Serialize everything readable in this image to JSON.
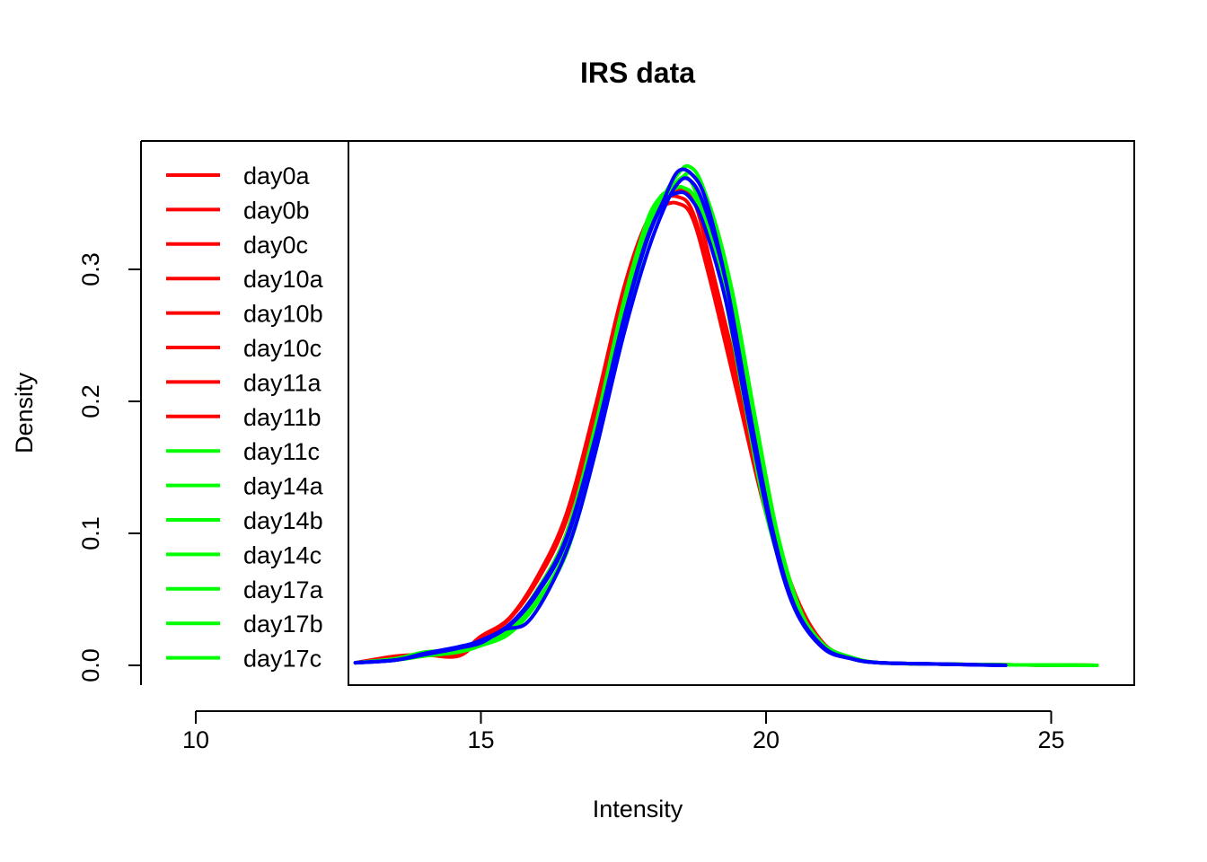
{
  "chart_data": {
    "type": "line",
    "title": "IRS data",
    "xlabel": "Intensity",
    "ylabel": "Density",
    "xlim": [
      12.8,
      26.6
    ],
    "ylim": [
      -0.0147,
      0.398
    ],
    "x_ticks": [
      10,
      15,
      20,
      25
    ],
    "y_ticks": [
      0.0,
      0.1,
      0.2,
      0.3
    ],
    "x_tick_labels": [
      "10",
      "15",
      "20",
      "25"
    ],
    "y_tick_labels": [
      "0.0",
      "0.1",
      "0.2",
      "0.3"
    ],
    "grid": false,
    "legend_position": "top-left",
    "group_colors": {
      "red": "#ff0000",
      "green": "#00ff00",
      "blue": "#0000ff"
    },
    "legend": [
      {
        "label": "day0a",
        "color": "#ff0000"
      },
      {
        "label": "day0b",
        "color": "#ff0000"
      },
      {
        "label": "day0c",
        "color": "#ff0000"
      },
      {
        "label": "day10a",
        "color": "#ff0000"
      },
      {
        "label": "day10b",
        "color": "#ff0000"
      },
      {
        "label": "day10c",
        "color": "#ff0000"
      },
      {
        "label": "day11a",
        "color": "#ff0000"
      },
      {
        "label": "day11b",
        "color": "#ff0000"
      },
      {
        "label": "day11c",
        "color": "#00ff00"
      },
      {
        "label": "day14a",
        "color": "#00ff00"
      },
      {
        "label": "day14b",
        "color": "#00ff00"
      },
      {
        "label": "day14c",
        "color": "#00ff00"
      },
      {
        "label": "day17a",
        "color": "#00ff00"
      },
      {
        "label": "day17b",
        "color": "#00ff00"
      },
      {
        "label": "day17c",
        "color": "#00ff00"
      }
    ],
    "series": [
      {
        "color": "#ff0000",
        "x": [
          12.8,
          13.5,
          14.0,
          14.6,
          15.0,
          15.5,
          16.0,
          16.5,
          17.0,
          17.5,
          17.9,
          18.2,
          18.45,
          18.7,
          19.0,
          19.5,
          20.0,
          20.5,
          21.0,
          21.5,
          22.0,
          23.0,
          24.0,
          25.0,
          25.8
        ],
        "y": [
          0.002,
          0.007,
          0.008,
          0.007,
          0.02,
          0.035,
          0.065,
          0.11,
          0.19,
          0.28,
          0.33,
          0.352,
          0.355,
          0.345,
          0.3,
          0.21,
          0.12,
          0.05,
          0.015,
          0.005,
          0.002,
          0.001,
          0.0005,
          0.0002,
          0.0
        ]
      },
      {
        "color": "#ff0000",
        "x": [
          12.8,
          13.5,
          14.0,
          14.6,
          15.0,
          15.5,
          16.0,
          16.5,
          17.0,
          17.5,
          17.9,
          18.2,
          18.5,
          18.75,
          19.0,
          19.5,
          20.0,
          20.5,
          21.0,
          21.5,
          22.0,
          23.0,
          24.0,
          25.0,
          25.8
        ],
        "y": [
          0.002,
          0.006,
          0.009,
          0.01,
          0.018,
          0.03,
          0.058,
          0.1,
          0.18,
          0.27,
          0.325,
          0.35,
          0.36,
          0.35,
          0.31,
          0.22,
          0.125,
          0.055,
          0.017,
          0.006,
          0.002,
          0.001,
          0.0005,
          0.0002,
          0.0
        ]
      },
      {
        "color": "#ff0000",
        "x": [
          12.8,
          13.5,
          14.0,
          14.6,
          15.0,
          15.5,
          16.0,
          16.5,
          17.0,
          17.5,
          17.9,
          18.2,
          18.45,
          18.7,
          19.0,
          19.5,
          20.0,
          20.5,
          21.0,
          21.5,
          22.0,
          23.0,
          24.0,
          25.0,
          25.8
        ],
        "y": [
          0.002,
          0.005,
          0.008,
          0.009,
          0.022,
          0.036,
          0.068,
          0.115,
          0.195,
          0.285,
          0.335,
          0.348,
          0.35,
          0.34,
          0.295,
          0.205,
          0.115,
          0.048,
          0.014,
          0.005,
          0.002,
          0.001,
          0.0005,
          0.0002,
          0.0
        ]
      },
      {
        "color": "#00ff00",
        "x": [
          12.8,
          13.5,
          14.0,
          14.6,
          15.0,
          15.5,
          16.0,
          16.5,
          17.0,
          17.5,
          17.9,
          18.2,
          18.4,
          18.6,
          18.8,
          19.2,
          19.6,
          20.0,
          20.5,
          21.0,
          21.5,
          22.0,
          23.0,
          24.0,
          25.0,
          25.8
        ],
        "y": [
          0.002,
          0.005,
          0.01,
          0.012,
          0.017,
          0.028,
          0.055,
          0.095,
          0.175,
          0.27,
          0.33,
          0.355,
          0.365,
          0.37,
          0.355,
          0.3,
          0.21,
          0.12,
          0.05,
          0.016,
          0.006,
          0.002,
          0.001,
          0.0005,
          0.0002,
          0.0
        ]
      },
      {
        "color": "#00ff00",
        "x": [
          12.8,
          13.5,
          14.0,
          14.6,
          15.0,
          15.5,
          16.0,
          16.5,
          17.0,
          17.5,
          17.9,
          18.2,
          18.45,
          18.65,
          18.9,
          19.3,
          19.7,
          20.1,
          20.5,
          21.0,
          21.5,
          22.0,
          23.0,
          24.0,
          25.0,
          25.8
        ],
        "y": [
          0.002,
          0.004,
          0.008,
          0.011,
          0.016,
          0.026,
          0.05,
          0.088,
          0.165,
          0.26,
          0.325,
          0.355,
          0.372,
          0.378,
          0.362,
          0.3,
          0.205,
          0.11,
          0.05,
          0.015,
          0.005,
          0.002,
          0.001,
          0.0005,
          0.0002,
          0.0
        ]
      },
      {
        "color": "#00ff00",
        "x": [
          12.8,
          13.5,
          14.0,
          14.6,
          15.0,
          15.5,
          16.0,
          16.5,
          17.0,
          17.5,
          17.9,
          18.15,
          18.35,
          18.55,
          18.8,
          19.2,
          19.6,
          20.0,
          20.5,
          21.0,
          21.5,
          22.0,
          23.0,
          24.0,
          25.0,
          25.8
        ],
        "y": [
          0.002,
          0.005,
          0.009,
          0.013,
          0.018,
          0.03,
          0.058,
          0.1,
          0.18,
          0.275,
          0.335,
          0.355,
          0.36,
          0.362,
          0.35,
          0.295,
          0.205,
          0.115,
          0.047,
          0.015,
          0.005,
          0.002,
          0.001,
          0.0005,
          0.0002,
          0.0
        ]
      },
      {
        "color": "#00ff00",
        "x": [
          12.8,
          13.5,
          14.0,
          14.6,
          15.0,
          15.5,
          16.0,
          16.5,
          17.0,
          17.5,
          17.9,
          18.2,
          18.5,
          18.7,
          19.0,
          19.4,
          19.8,
          20.2,
          20.6,
          21.0,
          21.5,
          22.0,
          23.0,
          24.0,
          25.0,
          25.8
        ],
        "y": [
          0.002,
          0.004,
          0.007,
          0.01,
          0.015,
          0.024,
          0.048,
          0.085,
          0.16,
          0.255,
          0.32,
          0.35,
          0.368,
          0.372,
          0.35,
          0.285,
          0.19,
          0.1,
          0.042,
          0.016,
          0.006,
          0.002,
          0.001,
          0.0005,
          0.0002,
          0.0
        ]
      },
      {
        "color": "#0000ff",
        "x": [
          12.8,
          13.5,
          14.0,
          14.6,
          15.0,
          15.4,
          15.8,
          16.2,
          16.6,
          17.0,
          17.5,
          17.9,
          18.2,
          18.45,
          18.65,
          18.9,
          19.3,
          19.7,
          20.1,
          20.5,
          21.0,
          21.5,
          22.0,
          23.0,
          24.2
        ],
        "y": [
          0.002,
          0.004,
          0.008,
          0.013,
          0.017,
          0.027,
          0.032,
          0.058,
          0.098,
          0.16,
          0.25,
          0.31,
          0.345,
          0.365,
          0.368,
          0.35,
          0.29,
          0.195,
          0.105,
          0.045,
          0.014,
          0.005,
          0.002,
          0.001,
          0.0
        ]
      },
      {
        "color": "#0000ff",
        "x": [
          12.8,
          13.5,
          14.0,
          14.6,
          15.0,
          15.5,
          16.0,
          16.5,
          17.0,
          17.5,
          17.9,
          18.2,
          18.45,
          18.65,
          18.9,
          19.3,
          19.7,
          20.1,
          20.5,
          21.0,
          21.5,
          22.0,
          23.0,
          24.2
        ],
        "y": [
          0.002,
          0.004,
          0.008,
          0.013,
          0.018,
          0.03,
          0.055,
          0.095,
          0.17,
          0.26,
          0.32,
          0.35,
          0.358,
          0.355,
          0.335,
          0.275,
          0.185,
          0.1,
          0.043,
          0.013,
          0.005,
          0.002,
          0.001,
          0.0
        ]
      },
      {
        "color": "#0000ff",
        "x": [
          12.8,
          13.5,
          14.0,
          14.6,
          15.0,
          15.5,
          16.0,
          16.5,
          17.0,
          17.5,
          17.9,
          18.2,
          18.45,
          18.7,
          18.95,
          19.3,
          19.7,
          20.1,
          20.5,
          21.0,
          21.5,
          22.0,
          23.0,
          24.2
        ],
        "y": [
          0.002,
          0.004,
          0.009,
          0.014,
          0.019,
          0.031,
          0.057,
          0.097,
          0.172,
          0.262,
          0.322,
          0.352,
          0.374,
          0.372,
          0.352,
          0.29,
          0.195,
          0.105,
          0.045,
          0.014,
          0.005,
          0.002,
          0.001,
          0.0
        ]
      }
    ]
  }
}
